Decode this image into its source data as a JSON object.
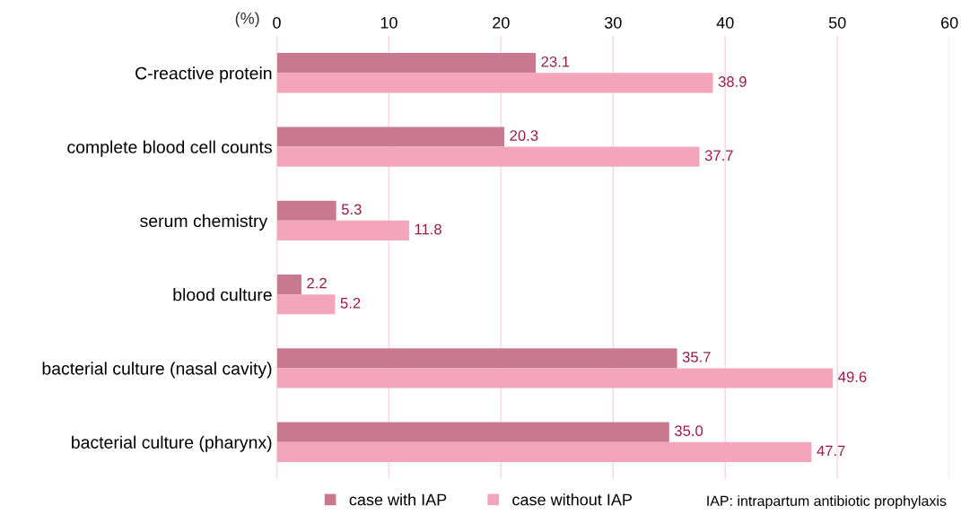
{
  "chart_data": {
    "type": "bar",
    "orientation": "horizontal",
    "xlabel": "(%)",
    "categories": [
      "C-reactive protein",
      "complete blood cell counts",
      "serum chemistry ",
      "blood culture",
      "bacterial culture (nasal cavity)",
      "bacterial culture (pharynx)"
    ],
    "series": [
      {
        "name": "case with IAP",
        "color": "#c8788f",
        "values": [
          23.1,
          20.3,
          5.3,
          2.2,
          35.7,
          35.0
        ],
        "value_labels": [
          "23.1",
          "20.3",
          "5.3",
          "2.2",
          "35.7",
          "35.0"
        ]
      },
      {
        "name": "case without IAP",
        "color": "#f3a5bb",
        "values": [
          38.9,
          37.7,
          11.8,
          5.2,
          49.6,
          47.7
        ],
        "value_labels": [
          "38.9",
          "37.7",
          "11.8",
          "5.2",
          "49.6",
          "47.7"
        ]
      }
    ],
    "xlim": [
      0,
      60
    ],
    "xticks": [
      0,
      10,
      20,
      30,
      40,
      50,
      60
    ],
    "grid": "x",
    "legend": "bottom",
    "annotations": [
      "IAP: intrapartum antibiotic prophylaxis"
    ]
  }
}
